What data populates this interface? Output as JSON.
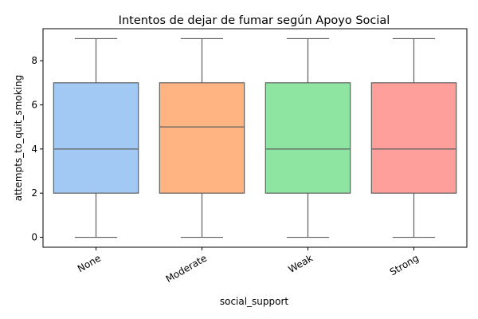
{
  "chart_data": {
    "type": "box",
    "title": "Intentos de dejar de fumar según Apoyo Social",
    "xlabel": "social_support",
    "ylabel": "attempts_to_quit_smoking",
    "categories": [
      "None",
      "Moderate",
      "Weak",
      "Strong"
    ],
    "boxes": [
      {
        "category": "None",
        "min": 0,
        "q1": 2,
        "median": 4,
        "q3": 7,
        "max": 9,
        "color": "#a1c9f4"
      },
      {
        "category": "Moderate",
        "min": 0,
        "q1": 2,
        "median": 5,
        "q3": 7,
        "max": 9,
        "color": "#ffb482"
      },
      {
        "category": "Weak",
        "min": 0,
        "q1": 2,
        "median": 4,
        "q3": 7,
        "max": 9,
        "color": "#8de5a1"
      },
      {
        "category": "Strong",
        "min": 0,
        "q1": 2,
        "median": 4,
        "q3": 7,
        "max": 9,
        "color": "#ff9f9b"
      }
    ],
    "ylim": [
      -0.45,
      9.45
    ],
    "yticks": [
      0,
      2,
      4,
      6,
      8
    ],
    "grid": false,
    "legend": "none",
    "line_color": "#5f5f5f"
  }
}
